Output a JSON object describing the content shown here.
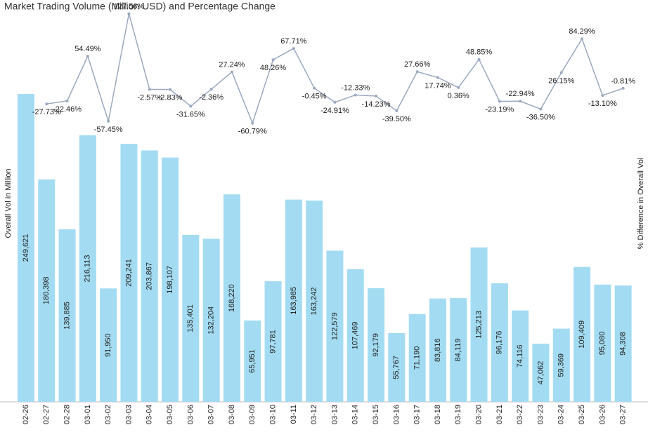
{
  "chart_data": {
    "type": "bar_line",
    "title": "Market Trading Volume (Million USD) and Percentage Change",
    "y_label": "Overall Vol in Million",
    "y2_label": "% Difference in Overall Vol",
    "categories": [
      "02-26",
      "02-27",
      "02-28",
      "03-01",
      "03-02",
      "03-03",
      "03-04",
      "03-05",
      "03-06",
      "03-07",
      "03-08",
      "03-09",
      "03-10",
      "03-11",
      "03-12",
      "03-13",
      "03-14",
      "03-15",
      "03-16",
      "03-17",
      "03-18",
      "03-19",
      "03-20",
      "03-21",
      "03-22",
      "03-23",
      "03-24",
      "03-25",
      "03-26",
      "03-27"
    ],
    "series": [
      {
        "name": "Overall Vol in Million",
        "type": "bar",
        "color": "#a3dcf2",
        "values": [
          249621,
          180398,
          139885,
          216113,
          91950,
          209241,
          203867,
          198107,
          135401,
          132204,
          168220,
          65951,
          97781,
          163985,
          163242,
          122579,
          107469,
          92179,
          55767,
          71190,
          83816,
          84119,
          125213,
          96176,
          74116,
          47062,
          59369,
          109409,
          95080,
          94308
        ],
        "value_labels": [
          "249,621",
          "180,398",
          "139,885",
          "216,113",
          "91,950",
          "209,241",
          "203,867",
          "198,107",
          "135,401",
          "132,204",
          "168,220",
          "65,951",
          "97,781",
          "163,985",
          "163,242",
          "122,579",
          "107,469",
          "92,179",
          "55,767",
          "71,190",
          "83,816",
          "84,119",
          "125,213",
          "96,176",
          "74,116",
          "47,062",
          "59,369",
          "109,409",
          "95,080",
          "94,308"
        ]
      },
      {
        "name": "% Difference in Overall Vol",
        "type": "line",
        "axis": "y2",
        "color": "#9ba9bf",
        "values": [
          null,
          -27.73,
          -22.46,
          54.49,
          -57.45,
          127.56,
          -2.57,
          -2.83,
          -31.65,
          -2.36,
          27.24,
          -60.79,
          48.26,
          67.71,
          -0.45,
          -24.91,
          -12.33,
          -14.23,
          -39.5,
          27.66,
          17.74,
          0.36,
          48.85,
          -23.19,
          -22.94,
          -36.5,
          26.15,
          84.29,
          -13.1,
          -0.81
        ],
        "value_labels": [
          null,
          "-27.73%",
          "-22.46%",
          "54.49%",
          "-57.45%",
          "127.56%",
          "-2.57%",
          "-2.83%",
          "-31.65%",
          "-2.36%",
          "27.24%",
          "-60.79%",
          "48.26%",
          "67.71%",
          "-0.45%",
          "-24.91%",
          "-12.33%",
          "-14.23%",
          "-39.50%",
          "27.66%",
          "17.74%",
          "0.36%",
          "48.85%",
          "-23.19%",
          "-22.94%",
          "-36.50%",
          "26.15%",
          "84.29%",
          "-13.10%",
          "-0.81%"
        ]
      }
    ],
    "ylim": [
      0,
      323000
    ],
    "y2lim": [
      -540,
      145
    ]
  }
}
